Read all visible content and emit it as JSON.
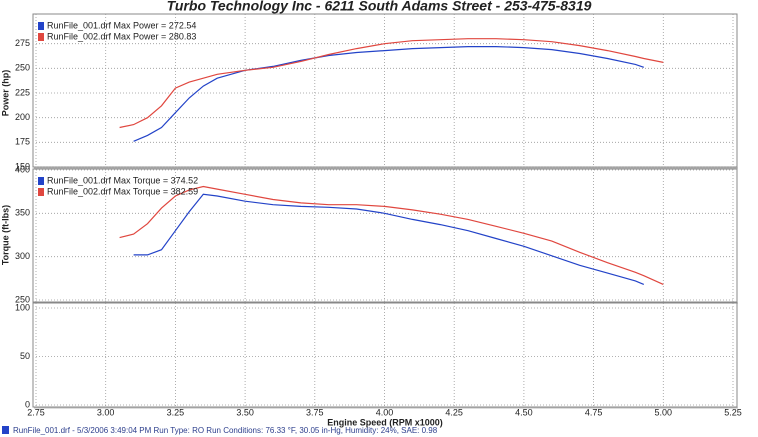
{
  "title": "Turbo Technology Inc - 6211 South Adams Street - 253-475-8319",
  "footer": "RunFile_001.drf - 5/3/2006 3:49:04 PM  Run Type: RO  Run Conditions: 76.33 °F, 30.05 in-Hg, Humidity: 24%, SAE: 0.98",
  "chart_data": [
    {
      "type": "line",
      "y_label": "Power (hp)",
      "xlim": [
        2.75,
        5.25
      ],
      "ylim": [
        150,
        300
      ],
      "yticks": [
        150,
        175,
        200,
        225,
        250,
        275
      ],
      "grid": true,
      "x": [
        3.05,
        3.1,
        3.15,
        3.2,
        3.25,
        3.3,
        3.35,
        3.4,
        3.5,
        3.6,
        3.7,
        3.8,
        3.9,
        4.0,
        4.1,
        4.2,
        4.3,
        4.4,
        4.5,
        4.6,
        4.7,
        4.8,
        4.9,
        4.93,
        5.0
      ],
      "series": [
        {
          "name": "RunFile_001.drf Max Power = 272.54",
          "color": "#2343c8",
          "values": [
            null,
            176,
            182,
            190,
            205,
            220,
            232,
            240,
            248,
            252,
            258,
            263,
            266,
            268,
            270,
            271,
            272,
            272,
            271,
            269,
            265,
            260,
            254,
            251,
            null
          ]
        },
        {
          "name": "RunFile_002.drf Max Power = 280.83",
          "color": "#e0473f",
          "values": [
            190,
            193,
            200,
            212,
            230,
            236,
            240,
            244,
            248,
            251,
            257,
            264,
            270,
            275,
            278,
            279,
            280,
            280,
            279,
            277,
            273,
            268,
            262,
            260,
            256
          ]
        }
      ]
    },
    {
      "type": "line",
      "y_label": "Torque (ft-lbs)",
      "xlim": [
        2.75,
        5.25
      ],
      "ylim": [
        250,
        400
      ],
      "yticks": [
        250,
        300,
        350,
        400
      ],
      "grid": true,
      "x": [
        3.05,
        3.1,
        3.15,
        3.2,
        3.25,
        3.3,
        3.35,
        3.4,
        3.5,
        3.6,
        3.7,
        3.8,
        3.9,
        4.0,
        4.1,
        4.2,
        4.3,
        4.4,
        4.5,
        4.6,
        4.7,
        4.8,
        4.9,
        4.93,
        5.0
      ],
      "series": [
        {
          "name": "RunFile_001.drf Max Torque = 374.52",
          "color": "#2343c8",
          "values": [
            null,
            302,
            302,
            308,
            330,
            352,
            372,
            370,
            364,
            360,
            358,
            357,
            355,
            350,
            343,
            337,
            330,
            321,
            312,
            301,
            290,
            281,
            272,
            268,
            null
          ]
        },
        {
          "name": "RunFile_002.drf Max Torque = 382.59",
          "color": "#e0473f",
          "values": [
            322,
            326,
            338,
            356,
            370,
            377,
            381,
            378,
            372,
            366,
            362,
            360,
            360,
            358,
            354,
            349,
            343,
            335,
            327,
            318,
            305,
            293,
            282,
            278,
            268
          ]
        }
      ]
    },
    {
      "type": "line",
      "x_label": "Engine Speed (RPM x1000)",
      "xlim": [
        2.75,
        5.25
      ],
      "ylim": [
        0,
        100
      ],
      "yticks": [
        0,
        50,
        100
      ],
      "grid": true,
      "xticks": [
        2.75,
        {
          "value": 3,
          "label": "3.00"
        },
        3.25,
        {
          "value": 3.5,
          "label": "3.50"
        },
        3.75,
        {
          "value": 4,
          "label": "4.00"
        },
        4.25,
        {
          "value": 4.5,
          "label": "4.50"
        },
        4.75,
        {
          "value": 5,
          "label": "5.00"
        },
        5.25
      ]
    }
  ]
}
